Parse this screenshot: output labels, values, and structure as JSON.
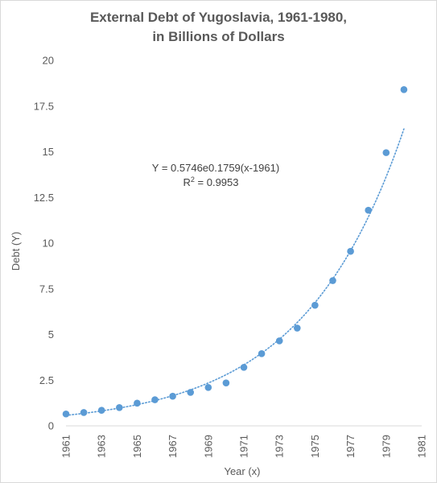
{
  "chart_data": {
    "type": "scatter",
    "title_lines": [
      "External Debt of Yugoslavia, 1961-1980,",
      "in Billions of Dollars"
    ],
    "xlabel": "Year (x)",
    "ylabel": "Debt (Y)",
    "xlim": [
      1961,
      1981
    ],
    "ylim": [
      0,
      20
    ],
    "x_ticks": [
      "1961",
      "1963",
      "1965",
      "1967",
      "1969",
      "1971",
      "1973",
      "1975",
      "1977",
      "1979",
      "1981"
    ],
    "y_ticks": [
      "0",
      "2.5",
      "5",
      "7.5",
      "10",
      "12.5",
      "15",
      "17.5",
      "20"
    ],
    "grid": false,
    "series": [
      {
        "x": [
          1961,
          1962,
          1963,
          1964,
          1965,
          1966,
          1967,
          1968,
          1969,
          1970,
          1971,
          1972,
          1973,
          1974,
          1975,
          1976,
          1977,
          1978,
          1979,
          1980
        ],
        "y": [
          0.65,
          0.73,
          0.85,
          1.0,
          1.24,
          1.43,
          1.62,
          1.83,
          2.1,
          2.35,
          3.2,
          3.95,
          4.65,
          5.35,
          6.6,
          7.95,
          9.55,
          11.8,
          14.95,
          18.4
        ]
      }
    ],
    "trendline": {
      "type": "exponential",
      "a": 0.5746,
      "b": 0.1759,
      "x0": 1961,
      "x_range": [
        1961,
        1980
      ],
      "style": "dotted"
    },
    "equation_text": "Y = 0.5746e0.1759(x-1961)",
    "r2_label": "R",
    "r2_sup": "2",
    "r2_value": " = 0.9953",
    "colors": {
      "point": "#5b9bd5",
      "trend": "#5b9bd5",
      "axis": "#d9d9d9",
      "text": "#595959"
    }
  }
}
